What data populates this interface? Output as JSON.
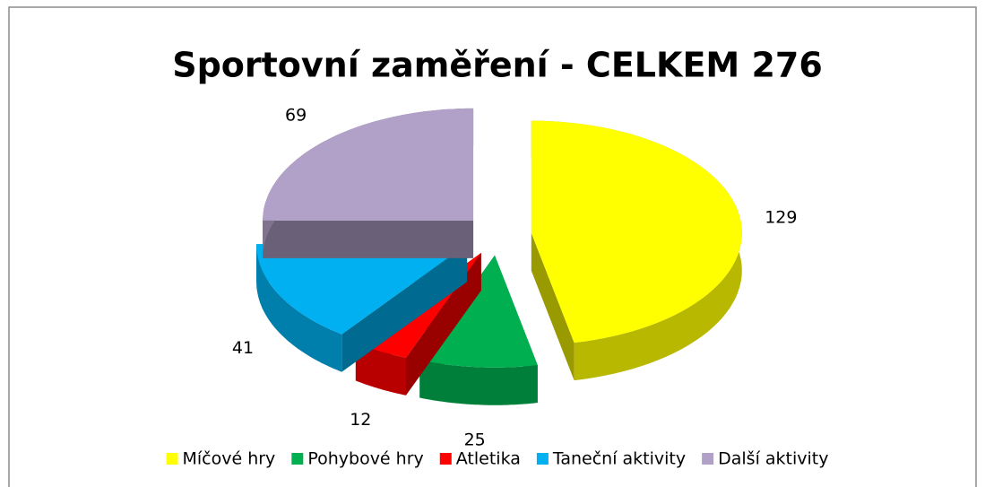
{
  "chart_data": {
    "type": "pie",
    "title": "Sportovní zaměření - CELKEM 276",
    "categories": [
      "Míčové hry",
      "Pohybové hry",
      "Atletika",
      "Taneční aktivity",
      "Další aktivity"
    ],
    "values": [
      129,
      25,
      12,
      41,
      69
    ],
    "colors": [
      "#ffff00",
      "#00b050",
      "#ff0000",
      "#00b0f0",
      "#b1a0c7"
    ],
    "legend": "bottom"
  }
}
